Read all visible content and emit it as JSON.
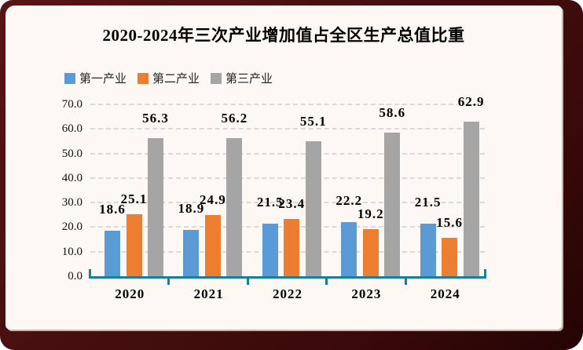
{
  "frame": {
    "border_color": "#471010",
    "panel_background": "#fdf8f3"
  },
  "chart_data": {
    "type": "bar",
    "title": "2020-2024年三次产业增加值占全区生产总值比重",
    "categories": [
      "2020",
      "2021",
      "2022",
      "2023",
      "2024"
    ],
    "series": [
      {
        "name": "第一产业",
        "color": "#5b9bd5",
        "values": [
          18.6,
          18.9,
          21.5,
          22.2,
          21.5
        ]
      },
      {
        "name": "第二产业",
        "color": "#ed7d31",
        "values": [
          25.1,
          24.9,
          23.4,
          19.2,
          15.6
        ]
      },
      {
        "name": "第三产业",
        "color": "#a5a5a5",
        "values": [
          56.3,
          56.2,
          55.1,
          58.6,
          62.9
        ]
      }
    ],
    "data_labels": [
      [
        "18.6",
        "18.9",
        "21.5",
        "22.2",
        "21.5"
      ],
      [
        "25.1",
        "24.9",
        "23.4",
        "19.2",
        "15.6"
      ],
      [
        "56.3",
        "56.2",
        "55.1",
        "58.6",
        "62.9"
      ]
    ],
    "ylim": [
      0,
      70
    ],
    "ytick_step": 10,
    "ytick_labels": [
      "0.0",
      "10.0",
      "20.0",
      "30.0",
      "40.0",
      "50.0",
      "60.0",
      "70.0"
    ],
    "grid": true,
    "grid_color": "#d9d9d9",
    "axis_color": "#177f99",
    "legend_position": "top-left"
  }
}
